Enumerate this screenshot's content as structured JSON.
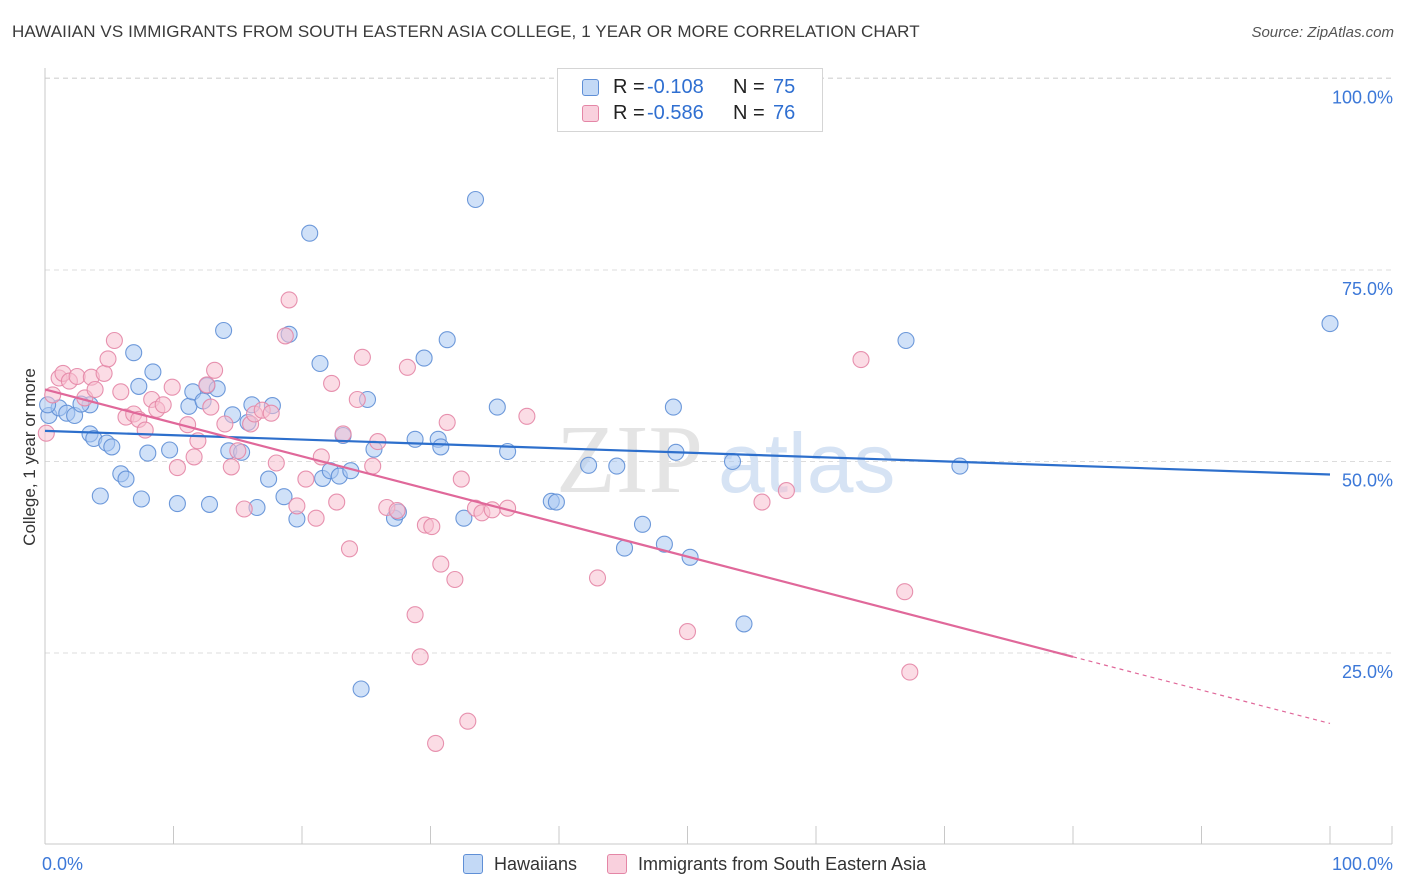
{
  "title": "HAWAIIAN VS IMMIGRANTS FROM SOUTH EASTERN ASIA COLLEGE, 1 YEAR OR MORE CORRELATION CHART",
  "source": "Source: ZipAtlas.com",
  "watermark": {
    "zip": "ZIP",
    "atlas": "atlas"
  },
  "legend_top": [
    {
      "r_label": "R =",
      "r_value": "-0.108",
      "n_label": "N =",
      "n_value": "75"
    },
    {
      "r_label": "R =",
      "r_value": "-0.586",
      "n_label": "N =",
      "n_value": "76"
    }
  ],
  "legend_bottom": {
    "series1": "Hawaiians",
    "series2": "Immigrants from South Eastern Asia"
  },
  "colors": {
    "blue_fill": "#a9c8f2",
    "blue_stroke": "#5f8fd6",
    "blue_line": "#2d6fcc",
    "pink_fill": "#f7bfd0",
    "pink_stroke": "#e486a6",
    "pink_line": "#e0689a",
    "axis_text": "#3c78d8",
    "grid": "#dcdcdc"
  },
  "chart_data": {
    "type": "scatter",
    "title": "HAWAIIAN VS IMMIGRANTS FROM SOUTH EASTERN ASIA COLLEGE, 1 YEAR OR MORE CORRELATION CHART",
    "xlabel": "",
    "ylabel": "College, 1 year or more",
    "xlim": [
      0,
      100
    ],
    "ylim": [
      0,
      104
    ],
    "x_tick_labels": [
      "0.0%",
      "100.0%"
    ],
    "y_ticks": [
      25,
      50,
      75,
      100
    ],
    "y_tick_labels": [
      "25.0%",
      "50.0%",
      "75.0%",
      "100.0%"
    ],
    "grid": "horizontal dashed",
    "legend_position": "top-center",
    "series": [
      {
        "name": "Hawaiians",
        "color": "#a9c8f2",
        "points": [
          [
            0.3,
            56.0
          ],
          [
            1.1,
            57.0
          ],
          [
            1.7,
            56.3
          ],
          [
            2.3,
            56.0
          ],
          [
            3.5,
            57.4
          ],
          [
            3.5,
            53.6
          ],
          [
            3.8,
            53.0
          ],
          [
            4.3,
            45.5
          ],
          [
            4.8,
            52.4
          ],
          [
            5.2,
            51.9
          ],
          [
            5.9,
            48.4
          ],
          [
            6.3,
            47.7
          ],
          [
            6.9,
            64.2
          ],
          [
            7.3,
            59.8
          ],
          [
            7.5,
            45.1
          ],
          [
            8.0,
            51.1
          ],
          [
            8.4,
            61.7
          ],
          [
            9.7,
            51.5
          ],
          [
            10.3,
            44.5
          ],
          [
            11.2,
            57.2
          ],
          [
            11.5,
            59.1
          ],
          [
            12.3,
            57.9
          ],
          [
            12.6,
            59.9
          ],
          [
            12.8,
            44.4
          ],
          [
            13.4,
            59.5
          ],
          [
            13.9,
            67.1
          ],
          [
            14.3,
            51.4
          ],
          [
            14.6,
            56.1
          ],
          [
            15.3,
            51.2
          ],
          [
            15.8,
            55.1
          ],
          [
            16.1,
            57.4
          ],
          [
            16.5,
            44.0
          ],
          [
            17.4,
            47.7
          ],
          [
            17.7,
            57.3
          ],
          [
            18.6,
            45.4
          ],
          [
            19.0,
            66.6
          ],
          [
            19.6,
            42.5
          ],
          [
            20.6,
            79.8
          ],
          [
            21.4,
            62.8
          ],
          [
            21.6,
            47.8
          ],
          [
            22.2,
            48.8
          ],
          [
            22.9,
            48.1
          ],
          [
            23.2,
            53.4
          ],
          [
            23.8,
            48.8
          ],
          [
            24.6,
            20.3
          ],
          [
            25.1,
            58.1
          ],
          [
            25.6,
            51.6
          ],
          [
            27.2,
            42.6
          ],
          [
            27.5,
            43.4
          ],
          [
            28.8,
            52.9
          ],
          [
            29.5,
            63.5
          ],
          [
            30.6,
            52.9
          ],
          [
            30.8,
            51.9
          ],
          [
            31.3,
            65.9
          ],
          [
            32.6,
            42.6
          ],
          [
            33.5,
            84.2
          ],
          [
            35.2,
            57.1
          ],
          [
            36.0,
            51.3
          ],
          [
            39.4,
            44.8
          ],
          [
            39.8,
            44.7
          ],
          [
            42.3,
            49.5
          ],
          [
            44.5,
            49.4
          ],
          [
            45.1,
            38.7
          ],
          [
            46.5,
            41.8
          ],
          [
            48.2,
            39.2
          ],
          [
            48.9,
            57.1
          ],
          [
            49.1,
            51.2
          ],
          [
            50.2,
            37.5
          ],
          [
            53.5,
            50.0
          ],
          [
            54.4,
            28.8
          ],
          [
            67.0,
            65.8
          ],
          [
            71.2,
            49.4
          ],
          [
            100.0,
            68.0
          ],
          [
            0.2,
            57.4
          ],
          [
            2.8,
            57.5
          ]
        ]
      },
      {
        "name": "Immigrants from South Eastern Asia",
        "color": "#f7bfd0",
        "points": [
          [
            0.1,
            53.7
          ],
          [
            0.6,
            58.7
          ],
          [
            1.1,
            60.9
          ],
          [
            1.4,
            61.5
          ],
          [
            1.9,
            60.5
          ],
          [
            2.5,
            61.1
          ],
          [
            3.1,
            58.3
          ],
          [
            3.6,
            61.0
          ],
          [
            3.9,
            59.4
          ],
          [
            4.6,
            61.5
          ],
          [
            4.9,
            63.4
          ],
          [
            5.4,
            65.8
          ],
          [
            5.9,
            59.1
          ],
          [
            6.3,
            55.8
          ],
          [
            6.9,
            56.2
          ],
          [
            7.3,
            55.5
          ],
          [
            7.8,
            54.1
          ],
          [
            8.3,
            58.1
          ],
          [
            8.7,
            56.8
          ],
          [
            9.2,
            57.4
          ],
          [
            9.9,
            59.7
          ],
          [
            10.3,
            49.2
          ],
          [
            11.1,
            54.8
          ],
          [
            11.6,
            50.6
          ],
          [
            11.9,
            52.7
          ],
          [
            12.6,
            60.0
          ],
          [
            12.9,
            57.1
          ],
          [
            13.2,
            61.9
          ],
          [
            14.0,
            54.9
          ],
          [
            14.5,
            49.3
          ],
          [
            15.0,
            51.4
          ],
          [
            15.5,
            43.8
          ],
          [
            16.0,
            54.9
          ],
          [
            16.3,
            56.2
          ],
          [
            16.9,
            56.7
          ],
          [
            17.6,
            56.3
          ],
          [
            18.0,
            49.8
          ],
          [
            18.7,
            66.4
          ],
          [
            19.0,
            71.1
          ],
          [
            19.6,
            44.2
          ],
          [
            20.3,
            47.7
          ],
          [
            21.1,
            42.6
          ],
          [
            21.5,
            50.6
          ],
          [
            22.3,
            60.2
          ],
          [
            22.7,
            44.7
          ],
          [
            23.2,
            53.6
          ],
          [
            23.7,
            38.6
          ],
          [
            24.3,
            58.1
          ],
          [
            24.7,
            63.6
          ],
          [
            25.5,
            49.4
          ],
          [
            25.9,
            52.6
          ],
          [
            26.6,
            44.0
          ],
          [
            27.4,
            43.6
          ],
          [
            28.2,
            62.3
          ],
          [
            28.8,
            30.0
          ],
          [
            29.2,
            24.5
          ],
          [
            29.6,
            41.7
          ],
          [
            30.1,
            41.5
          ],
          [
            30.4,
            13.2
          ],
          [
            30.8,
            36.6
          ],
          [
            31.3,
            55.1
          ],
          [
            31.9,
            34.6
          ],
          [
            32.4,
            47.7
          ],
          [
            32.9,
            16.1
          ],
          [
            33.5,
            43.9
          ],
          [
            34.0,
            43.3
          ],
          [
            34.8,
            43.7
          ],
          [
            36.0,
            43.9
          ],
          [
            37.5,
            55.9
          ],
          [
            43.0,
            34.8
          ],
          [
            50.0,
            27.8
          ],
          [
            55.8,
            44.7
          ],
          [
            57.7,
            46.2
          ],
          [
            63.5,
            63.3
          ],
          [
            66.9,
            33.0
          ],
          [
            67.3,
            22.5
          ]
        ]
      }
    ],
    "trend_lines": [
      {
        "series": "Hawaiians",
        "x1": 0,
        "y1": 54.0,
        "x2": 100,
        "y2": 48.3
      },
      {
        "series": "Immigrants from South Eastern Asia",
        "x1": 0,
        "y1": 59.4,
        "x2": 80,
        "y2": 24.5,
        "dashed_to_x": 100,
        "dashed_to_y": 15.8
      }
    ]
  }
}
